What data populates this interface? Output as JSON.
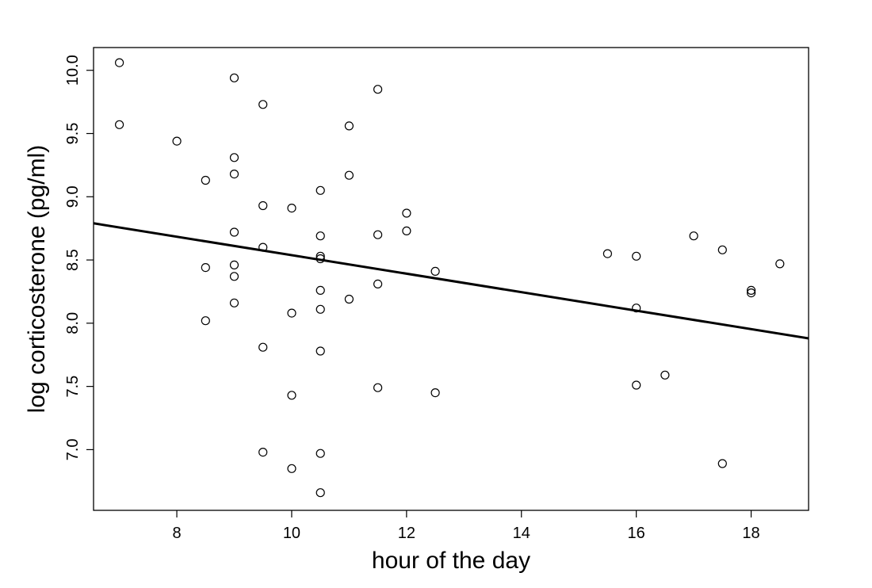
{
  "chart_data": {
    "type": "scatter",
    "title": "",
    "xlabel": "hour of the day",
    "ylabel": "log corticosterone (pg/ml)",
    "xlim": [
      6.55,
      19
    ],
    "ylim": [
      6.52,
      10.18
    ],
    "xticks": [
      8,
      10,
      12,
      14,
      16,
      18
    ],
    "yticks": [
      7.0,
      7.5,
      8.0,
      8.5,
      9.0,
      9.5,
      10.0
    ],
    "xtick_labels": [
      "8",
      "10",
      "12",
      "14",
      "16",
      "18"
    ],
    "ytick_labels": [
      "7.0",
      "7.5",
      "8.0",
      "8.5",
      "9.0",
      "9.5",
      "10.0"
    ],
    "points": [
      {
        "x": 7,
        "y": 10.06
      },
      {
        "x": 7,
        "y": 9.57
      },
      {
        "x": 8,
        "y": 9.44
      },
      {
        "x": 8.5,
        "y": 9.13
      },
      {
        "x": 8.5,
        "y": 8.44
      },
      {
        "x": 8.5,
        "y": 8.02
      },
      {
        "x": 9,
        "y": 9.94
      },
      {
        "x": 9,
        "y": 9.31
      },
      {
        "x": 9,
        "y": 9.18
      },
      {
        "x": 9,
        "y": 8.72
      },
      {
        "x": 9,
        "y": 8.46
      },
      {
        "x": 9,
        "y": 8.37
      },
      {
        "x": 9,
        "y": 8.16
      },
      {
        "x": 9.5,
        "y": 9.73
      },
      {
        "x": 9.5,
        "y": 8.93
      },
      {
        "x": 9.5,
        "y": 8.6
      },
      {
        "x": 9.5,
        "y": 7.81
      },
      {
        "x": 9.5,
        "y": 6.98
      },
      {
        "x": 10,
        "y": 8.91
      },
      {
        "x": 10,
        "y": 8.08
      },
      {
        "x": 10,
        "y": 7.43
      },
      {
        "x": 10,
        "y": 6.85
      },
      {
        "x": 10.5,
        "y": 9.05
      },
      {
        "x": 10.5,
        "y": 8.69
      },
      {
        "x": 10.5,
        "y": 8.53
      },
      {
        "x": 10.5,
        "y": 8.51
      },
      {
        "x": 10.5,
        "y": 8.26
      },
      {
        "x": 10.5,
        "y": 8.11
      },
      {
        "x": 10.5,
        "y": 7.78
      },
      {
        "x": 10.5,
        "y": 6.97
      },
      {
        "x": 10.5,
        "y": 6.66
      },
      {
        "x": 11,
        "y": 9.56
      },
      {
        "x": 11,
        "y": 9.17
      },
      {
        "x": 11,
        "y": 8.19
      },
      {
        "x": 11.5,
        "y": 9.85
      },
      {
        "x": 11.5,
        "y": 8.7
      },
      {
        "x": 11.5,
        "y": 8.31
      },
      {
        "x": 11.5,
        "y": 7.49
      },
      {
        "x": 12,
        "y": 8.87
      },
      {
        "x": 12,
        "y": 8.73
      },
      {
        "x": 12.5,
        "y": 8.41
      },
      {
        "x": 12.5,
        "y": 7.45
      },
      {
        "x": 15.5,
        "y": 8.55
      },
      {
        "x": 16,
        "y": 8.53
      },
      {
        "x": 16,
        "y": 8.12
      },
      {
        "x": 16,
        "y": 7.51
      },
      {
        "x": 16.5,
        "y": 7.59
      },
      {
        "x": 17,
        "y": 8.69
      },
      {
        "x": 17.5,
        "y": 8.58
      },
      {
        "x": 17.5,
        "y": 6.89
      },
      {
        "x": 18,
        "y": 8.26
      },
      {
        "x": 18,
        "y": 8.24
      },
      {
        "x": 18.5,
        "y": 8.47
      }
    ],
    "regression_line": {
      "x": [
        6.55,
        19
      ],
      "y": [
        8.79,
        7.88
      ]
    }
  }
}
